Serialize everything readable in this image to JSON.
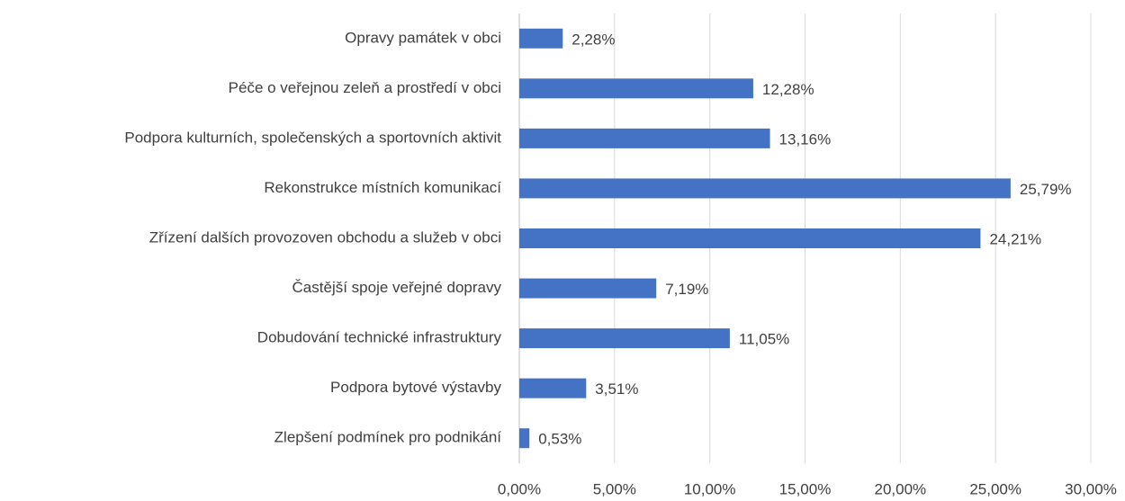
{
  "chart_data": {
    "type": "bar",
    "orientation": "horizontal",
    "categories": [
      "Opravy památek v obci",
      "Péče o veřejnou zeleň a prostředí v obci",
      "Podpora kulturních, společenských a sportovních aktivit",
      "Rekonstrukce místních komunikací",
      "Zřízení dalších provozoven obchodu a služeb v obci",
      "Častější spoje veřejné dopravy",
      "Dobudování technické infrastruktury",
      "Podpora bytové výstavby",
      "Zlepšení podmínek pro podnikání"
    ],
    "values": [
      2.28,
      12.28,
      13.16,
      25.79,
      24.21,
      7.19,
      11.05,
      3.51,
      0.53
    ],
    "value_labels": [
      "2,28%",
      "12,28%",
      "13,16%",
      "25,79%",
      "24,21%",
      "7,19%",
      "11,05%",
      "3,51%",
      "0,53%"
    ],
    "color": "#4472c4",
    "xlim": [
      0,
      30
    ],
    "xticks": [
      {
        "value": 0,
        "label": "0,00%"
      },
      {
        "value": 5,
        "label": "5,00%"
      },
      {
        "value": 10,
        "label": "10,00%"
      },
      {
        "value": 15,
        "label": "15,00%"
      },
      {
        "value": 20,
        "label": "20,00%"
      },
      {
        "value": 25,
        "label": "25,00%"
      },
      {
        "value": 30,
        "label": "30,00%"
      }
    ],
    "grid": true
  }
}
